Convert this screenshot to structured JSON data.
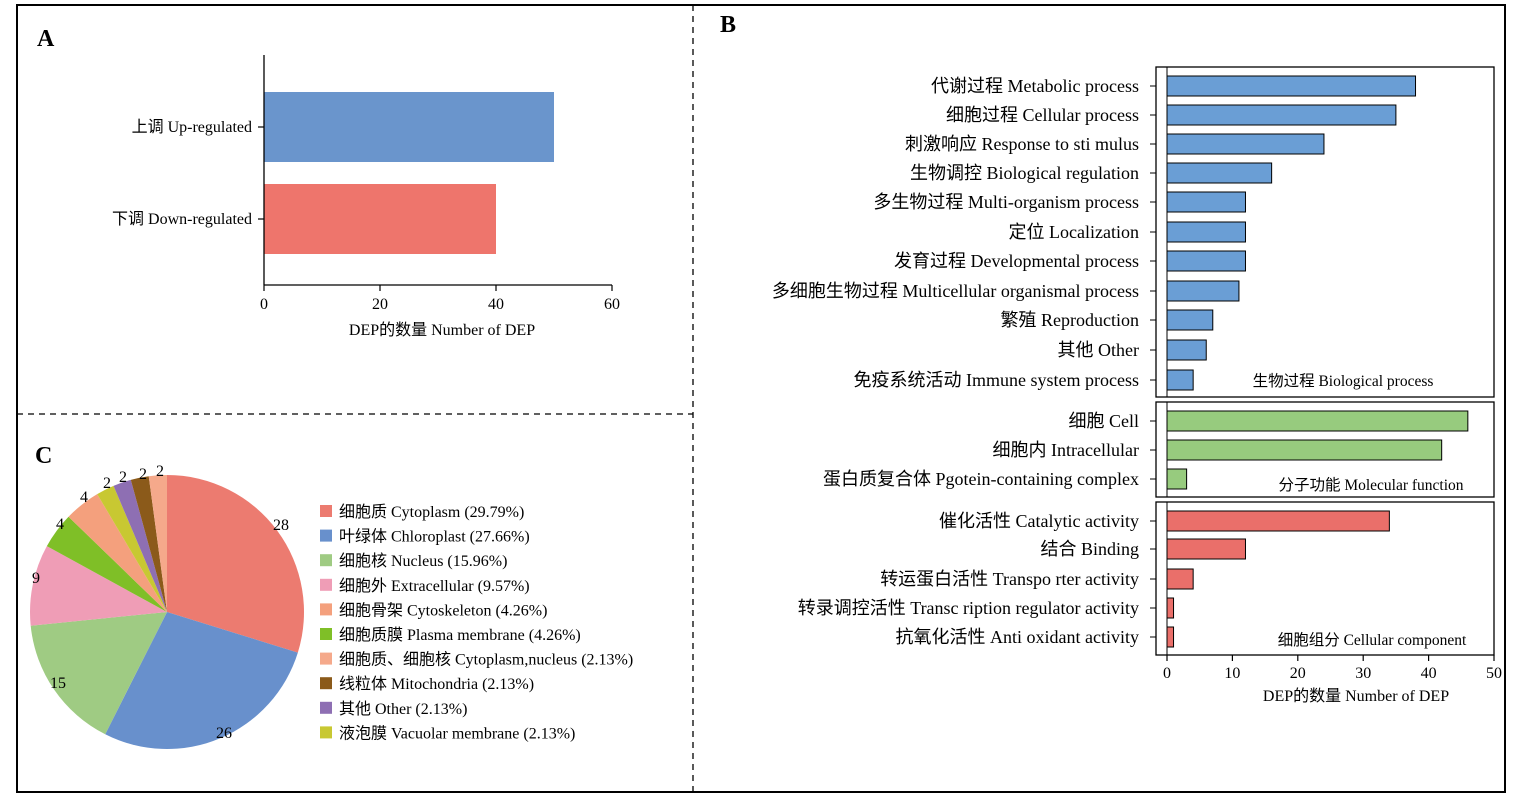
{
  "panels": {
    "a": "A",
    "b": "B",
    "c": "C"
  },
  "chart_data": [
    {
      "panel": "A",
      "type": "bar",
      "orientation": "horizontal",
      "categories": [
        "上调 Up-regulated",
        "下调 Down-regulated"
      ],
      "values": [
        50,
        40
      ],
      "colors": [
        "#6a95cc",
        "#ee756c"
      ],
      "xlabel": "DEP的数量 Number of DEP",
      "xlim": [
        0,
        60
      ],
      "xticks": [
        0,
        20,
        40,
        60
      ],
      "grid": false
    },
    {
      "panel": "B",
      "type": "bar",
      "orientation": "horizontal",
      "xlabel": "DEP的数量 Number of DEP",
      "xlim": [
        0,
        50
      ],
      "xticks": [
        0,
        10,
        20,
        30,
        40,
        50
      ],
      "grid": false,
      "groups": [
        {
          "name": "生物过程 Biological process",
          "color": "#6a9ed5",
          "categories": [
            "代谢过程 Metabolic process",
            "细胞过程 Cellular process",
            "刺激响应 Response to sti mulus",
            "生物调控 Biological regulation",
            "多生物过程 Multi-organism process",
            "定位 Localization",
            "发育过程 Developmental process",
            "多细胞生物过程 Multicellular organismal process",
            "繁殖 Reproduction",
            "其他 Other",
            "免疫系统活动 Immune system process"
          ],
          "values": [
            38,
            35,
            24,
            16,
            12,
            12,
            12,
            11,
            7,
            6,
            4
          ]
        },
        {
          "name": "分子功能 Molecular function",
          "color": "#97cb7e",
          "categories": [
            "细胞 Cell",
            "细胞内 Intracellular",
            "蛋白质复合体 Pgotein-containing complex"
          ],
          "values": [
            46,
            42,
            3
          ]
        },
        {
          "name": "细胞组分 Cellular component",
          "color": "#ea6f6a",
          "categories": [
            "催化活性 Catalytic activity",
            "结合 Binding",
            "转运蛋白活性 Transpo rter activity",
            "转录调控活性 Transc ription regulator activity",
            "抗氧化活性 Anti oxidant activity"
          ],
          "values": [
            34,
            12,
            4,
            1,
            1
          ]
        }
      ]
    },
    {
      "panel": "C",
      "type": "pie",
      "slices": [
        {
          "label": "细胞质 Cytoplasm (29.79%)",
          "value": 28,
          "color": "#ec7b70"
        },
        {
          "label": "叶绿体 Chloroplast (27.66%)",
          "value": 26,
          "color": "#6890cc"
        },
        {
          "label": "细胞核 Nucleus (15.96%)",
          "value": 15,
          "color": "#9fcb83"
        },
        {
          "label": "细胞外 Extracellular (9.57%)",
          "value": 9,
          "color": "#ef9db6"
        },
        {
          "label": "细胞骨架 Cytoskeleton (4.26%)",
          "value": 4,
          "color": "#f4a07d"
        },
        {
          "label": "细胞质膜 Plasma membrane (4.26%)",
          "value": 4,
          "color": "#7fbf27"
        },
        {
          "label": "细胞质、细胞核 Cytoplasm,nucleus (2.13%)",
          "value": 2,
          "color": "#f5a98b"
        },
        {
          "label": "线粒体 Mitochondria (2.13%)",
          "value": 2,
          "color": "#8b5a1a"
        },
        {
          "label": "其他 Other (2.13%)",
          "value": 2,
          "color": "#8e6fb3"
        },
        {
          "label": "液泡膜 Vacuolar membrane (2.13%)",
          "value": 2,
          "color": "#c8c832"
        }
      ],
      "slice_order": [
        0,
        1,
        2,
        3,
        5,
        4,
        9,
        8,
        7,
        6
      ],
      "legend": "right"
    }
  ]
}
